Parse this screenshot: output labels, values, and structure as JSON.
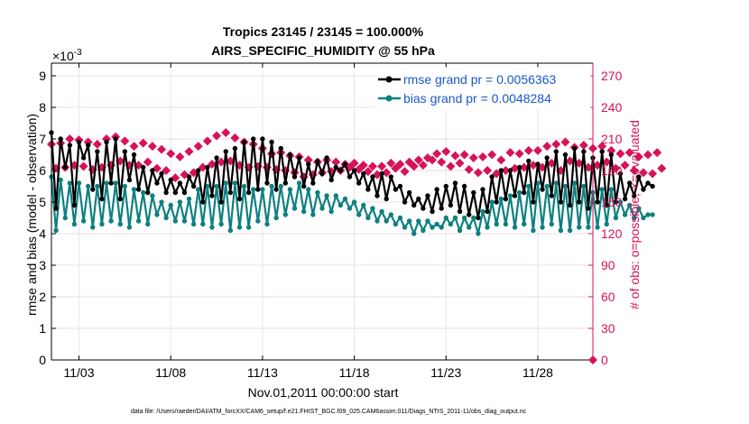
{
  "chart_data": {
    "type": "line",
    "title_line1": "Tropics 23145 / 23145 = 100.000%",
    "title_line2": "AIRS_SPECIFIC_HUMIDITY @ 55 hPa",
    "exponent_label": "×10",
    "exponent_power": "-3",
    "ylabel_left": "rmse and bias (model - observation)",
    "ylabel_right": "# of obs: o=possible; ×=evaluated",
    "xlabel": "Nov.01,2011 00:00:00 start",
    "footer": "data file: /Users/raeder/DAI/ATM_forcXX/CAM6_setup/f.e21.FHIST_BGC.f09_025.CAM6assim.011/Diags_NTrS_2011-11/obs_diag_output.nc",
    "xlim": [
      1.5,
      31.0
    ],
    "ylim_left": [
      0,
      9.4
    ],
    "ylim_right": [
      0,
      282
    ],
    "left_ticks": [
      "0",
      "1",
      "2",
      "3",
      "4",
      "5",
      "6",
      "7",
      "8",
      "9"
    ],
    "right_ticks": [
      "0",
      "30",
      "60",
      "90",
      "120",
      "150",
      "180",
      "210",
      "240",
      "270"
    ],
    "x_ticks": [
      {
        "day": 3,
        "label": "11/03"
      },
      {
        "day": 8,
        "label": "11/08"
      },
      {
        "day": 13,
        "label": "11/13"
      },
      {
        "day": 18,
        "label": "11/18"
      },
      {
        "day": 23,
        "label": "11/23"
      },
      {
        "day": 28,
        "label": "11/28"
      }
    ],
    "legend": [
      {
        "label": "rmse grand pr = 0.0056363",
        "color": "#000000"
      },
      {
        "label": "bias grand pr = 0.0048284",
        "color": "#0e8080"
      }
    ],
    "colors": {
      "rmse": "#000000",
      "bias": "#0e8080",
      "obs": "#d6135a",
      "grid": "#e6e6e6"
    },
    "series": [
      {
        "name": "rmse",
        "unit": "1e-3",
        "x_start": 1.5,
        "x_step": 0.25,
        "values": [
          7.2,
          4.8,
          7.0,
          6.1,
          6.8,
          4.9,
          6.9,
          6.4,
          6.8,
          5.4,
          6.6,
          5.1,
          6.9,
          5.6,
          7.0,
          5.1,
          6.6,
          5.7,
          6.5,
          5.4,
          6.1,
          5.3,
          6.0,
          5.6,
          5.9,
          5.3,
          5.7,
          5.3,
          5.6,
          5.3,
          5.8,
          5.5,
          6.0,
          5.0,
          6.1,
          5.2,
          6.4,
          5.0,
          6.6,
          5.3,
          6.7,
          5.1,
          6.9,
          5.3,
          7.0,
          5.4,
          7.0,
          5.6,
          6.9,
          5.4,
          6.7,
          5.6,
          6.5,
          5.8,
          6.4,
          5.5,
          6.2,
          5.6,
          6.3,
          5.9,
          6.4,
          5.7,
          6.1,
          6.0,
          6.2,
          5.8,
          6.0,
          5.6,
          5.9,
          5.4,
          5.8,
          5.2,
          5.9,
          5.1,
          5.8,
          5.4,
          5.5,
          5.0,
          5.3,
          4.9,
          5.1,
          4.8,
          5.2,
          4.7,
          5.4,
          4.8,
          5.5,
          4.9,
          5.6,
          4.7,
          5.5,
          4.6,
          5.3,
          4.5,
          5.4,
          4.7,
          5.8,
          5.0,
          6.0,
          5.1,
          6.0,
          5.2,
          6.1,
          5.3,
          6.3,
          5.0,
          6.2,
          5.4,
          6.4,
          5.2,
          6.6,
          5.0,
          6.5,
          4.9,
          6.7,
          5.0,
          6.6,
          4.8,
          6.4,
          5.0,
          6.6,
          4.9,
          6.5,
          5.0,
          5.9,
          5.1,
          5.6,
          5.2,
          5.8,
          5.4,
          5.6,
          5.5
        ]
      },
      {
        "name": "bias",
        "unit": "1e-3",
        "x_start": 1.5,
        "x_step": 0.25,
        "values": [
          5.8,
          4.1,
          5.7,
          4.5,
          5.6,
          4.3,
          5.6,
          4.4,
          5.5,
          4.2,
          5.5,
          4.3,
          5.6,
          4.4,
          5.6,
          4.3,
          5.5,
          4.2,
          5.4,
          4.4,
          5.3,
          4.3,
          5.2,
          4.6,
          5.0,
          4.5,
          4.9,
          4.4,
          5.0,
          4.4,
          5.1,
          4.3,
          5.4,
          4.3,
          5.5,
          4.2,
          5.5,
          4.3,
          5.6,
          4.1,
          5.6,
          4.2,
          5.5,
          4.2,
          5.4,
          4.4,
          5.4,
          4.3,
          5.5,
          4.5,
          5.5,
          4.6,
          5.4,
          4.8,
          5.6,
          4.7,
          5.4,
          4.6,
          5.3,
          4.8,
          5.2,
          4.7,
          5.2,
          4.9,
          5.1,
          4.8,
          5.0,
          4.6,
          4.9,
          4.5,
          4.8,
          4.4,
          4.7,
          4.4,
          4.6,
          4.3,
          4.5,
          4.2,
          4.4,
          4.0,
          4.4,
          4.1,
          4.4,
          4.2,
          4.3,
          4.2,
          4.5,
          4.3,
          4.5,
          4.1,
          4.5,
          4.2,
          4.5,
          4.0,
          4.7,
          4.2,
          5.0,
          4.3,
          5.1,
          4.3,
          5.2,
          4.2,
          5.3,
          4.3,
          5.5,
          4.1,
          5.6,
          4.2,
          5.5,
          4.3,
          5.6,
          4.1,
          5.5,
          4.1,
          5.6,
          4.2,
          5.5,
          4.2,
          5.3,
          4.2,
          5.4,
          4.3,
          5.4,
          4.5,
          5.0,
          4.6,
          4.9,
          4.5,
          4.8,
          4.5,
          4.6,
          4.6
        ]
      },
      {
        "name": "obs_count",
        "unit": "count",
        "x_start": 1.5,
        "x_step": 0.25,
        "values": [
          205,
          182,
          206,
          183,
          210,
          185,
          209,
          184,
          207,
          181,
          205,
          183,
          210,
          185,
          212,
          189,
          208,
          185,
          203,
          185,
          206,
          188,
          203,
          182,
          200,
          180,
          196,
          173,
          193,
          176,
          198,
          178,
          203,
          183,
          208,
          186,
          213,
          188,
          216,
          189,
          211,
          185,
          207,
          183,
          205,
          184,
          201,
          183,
          196,
          181,
          197,
          180,
          194,
          178,
          193,
          174,
          190,
          176,
          188,
          178,
          190,
          179,
          188,
          180,
          186,
          183,
          187,
          181,
          185,
          179,
          184,
          176,
          184,
          178,
          187,
          182,
          186,
          179,
          188,
          184,
          190,
          185,
          192,
          190,
          196,
          188,
          198,
          184,
          194,
          187,
          195,
          181,
          192,
          178,
          193,
          180,
          195,
          177,
          190,
          180,
          197,
          182,
          196,
          183,
          199,
          185,
          199,
          183,
          203,
          187,
          205,
          180,
          207,
          189,
          202,
          187,
          204,
          183,
          201,
          185,
          203,
          188,
          199,
          182,
          196,
          185,
          197,
          180,
          193,
          178,
          195,
          177,
          197,
          182
        ]
      }
    ]
  }
}
